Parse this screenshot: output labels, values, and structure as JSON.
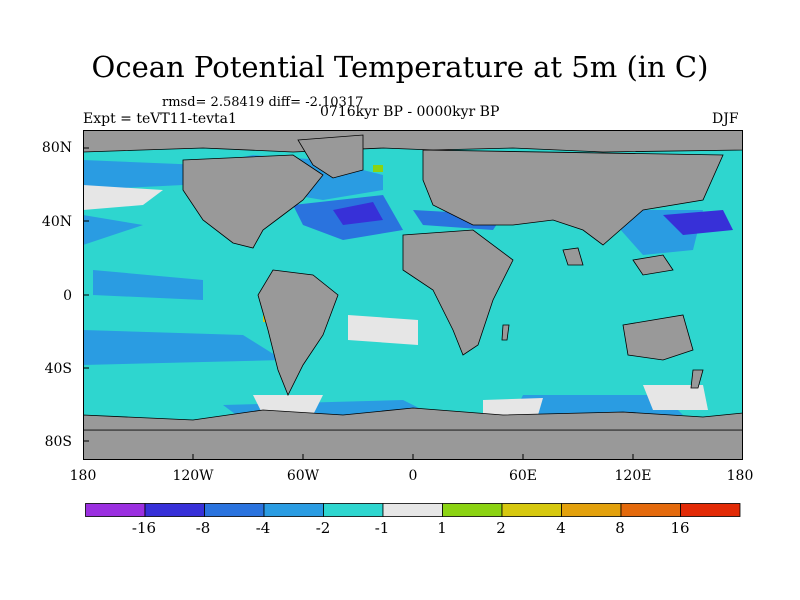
{
  "title": "Ocean Potential Temperature at 5m (in C)",
  "stats": "rmsd= 2.58419 diff= -2.10317",
  "period": "0716kyr BP - 0000kyr BP",
  "experiment": "Expt = teVT11-tevta1",
  "season": "DJF",
  "axes": {
    "y_labels": [
      "80N",
      "40N",
      "0",
      "40S",
      "80S"
    ],
    "x_labels": [
      "180",
      "120W",
      "60W",
      "0",
      "60E",
      "120E",
      "180"
    ]
  },
  "colorbar": {
    "colors": [
      "#9b2fe0",
      "#3730d8",
      "#2a73de",
      "#2a9ce2",
      "#2ed6cf",
      "#e6e6e6",
      "#8bd312",
      "#d6c80f",
      "#e3a10c",
      "#e46a0c",
      "#e22a06"
    ],
    "labels": [
      "-16",
      "-8",
      "-4",
      "-2",
      "-1",
      "1",
      "2",
      "4",
      "8",
      "16"
    ]
  },
  "map_colors": {
    "land": "#999999",
    "background": "#2ed6cf",
    "frame": "#000000"
  }
}
